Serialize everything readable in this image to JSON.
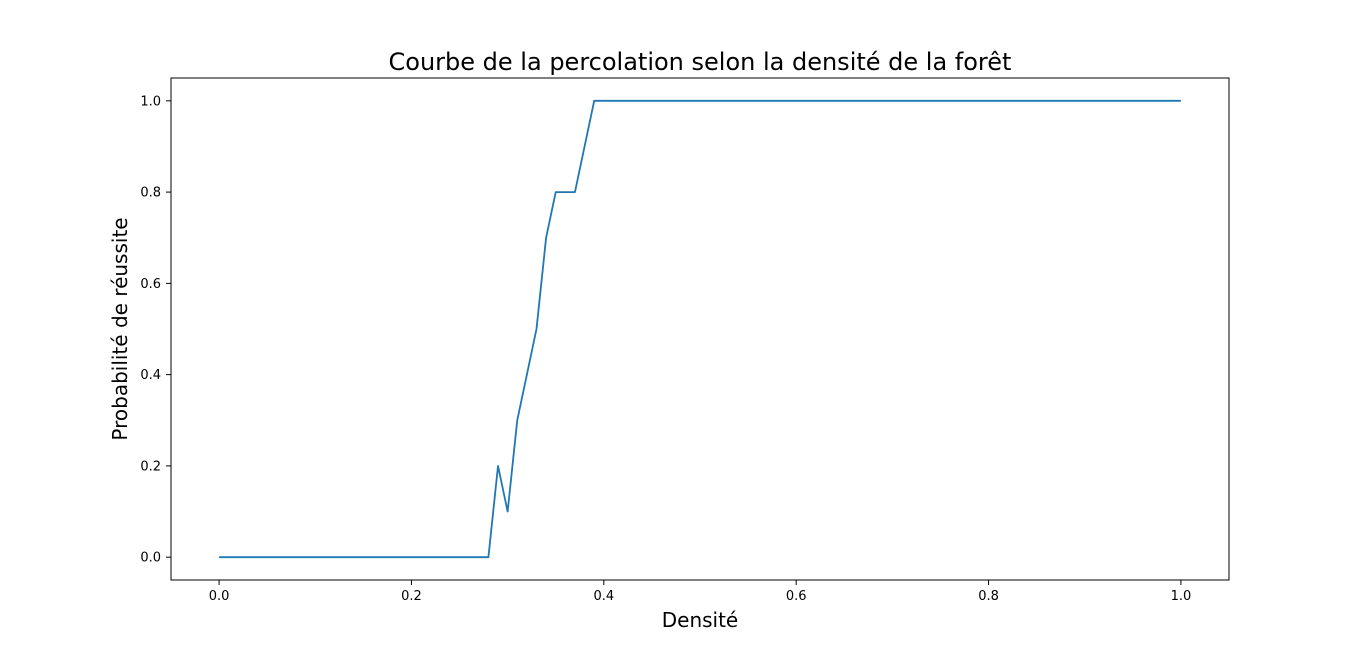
{
  "chart_data": {
    "type": "line",
    "title": "Courbe de la percolation selon la densité de la forêt",
    "xlabel": "Densité",
    "ylabel": "Probabilité de réussite",
    "xlim": [
      -0.05,
      1.05
    ],
    "ylim": [
      -0.05,
      1.05
    ],
    "x_ticks": [
      {
        "value": 0.0,
        "label": "0.0"
      },
      {
        "value": 0.2,
        "label": "0.2"
      },
      {
        "value": 0.4,
        "label": "0.4"
      },
      {
        "value": 0.6,
        "label": "0.6"
      },
      {
        "value": 0.8,
        "label": "0.8"
      },
      {
        "value": 1.0,
        "label": "1.0"
      }
    ],
    "y_ticks": [
      {
        "value": 0.0,
        "label": "0.0"
      },
      {
        "value": 0.2,
        "label": "0.2"
      },
      {
        "value": 0.4,
        "label": "0.4"
      },
      {
        "value": 0.6,
        "label": "0.6"
      },
      {
        "value": 0.8,
        "label": "0.8"
      },
      {
        "value": 1.0,
        "label": "1.0"
      }
    ],
    "grid": false,
    "legend": "none",
    "series": [
      {
        "color": "#1f77b4",
        "x": [
          0.0,
          0.28,
          0.29,
          0.3,
          0.31,
          0.32,
          0.33,
          0.34,
          0.35,
          0.36,
          0.37,
          0.38,
          0.39,
          0.4,
          1.0
        ],
        "y": [
          0.0,
          0.0,
          0.2,
          0.1,
          0.3,
          0.4,
          0.5,
          0.7,
          0.8,
          0.8,
          0.8,
          0.9,
          1.0,
          1.0,
          1.0
        ]
      }
    ]
  }
}
